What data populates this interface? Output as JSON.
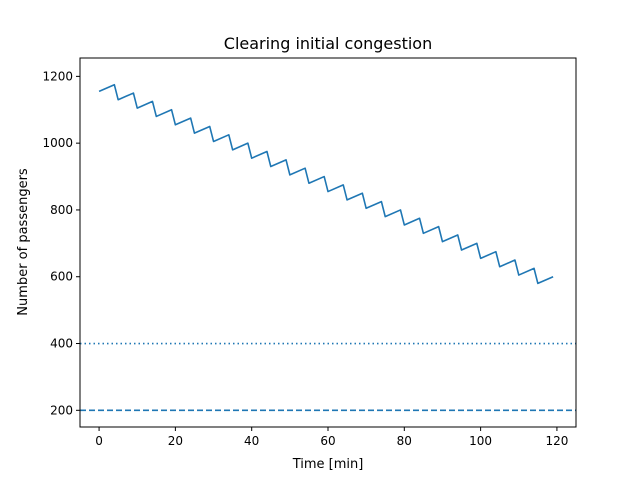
{
  "chart_data": {
    "type": "line",
    "title": "Clearing initial congestion",
    "xlabel": "Time [min]",
    "ylabel": "Number of passengers",
    "xlim": [
      -5,
      125
    ],
    "ylim": [
      150,
      1255
    ],
    "xticks": [
      0,
      20,
      40,
      60,
      80,
      100,
      120
    ],
    "yticks": [
      200,
      400,
      600,
      800,
      1000,
      1200
    ],
    "grid": false,
    "series": [
      {
        "color": "#1f77b4",
        "style": "solid",
        "x": [
          0,
          4,
          5,
          9,
          10,
          14,
          15,
          19,
          20,
          24,
          25,
          29,
          30,
          34,
          35,
          39,
          40,
          44,
          45,
          49,
          50,
          54,
          55,
          59,
          60,
          64,
          65,
          69,
          70,
          74,
          75,
          79,
          80,
          84,
          85,
          89,
          90,
          94,
          95,
          99,
          100,
          104,
          105,
          109,
          110,
          114,
          115,
          119
        ],
        "y": [
          1155,
          1175,
          1130,
          1150,
          1105,
          1125,
          1080,
          1100,
          1055,
          1075,
          1030,
          1050,
          1005,
          1025,
          980,
          1000,
          955,
          975,
          930,
          950,
          905,
          925,
          880,
          900,
          855,
          875,
          830,
          850,
          805,
          825,
          780,
          800,
          755,
          775,
          730,
          750,
          705,
          725,
          680,
          700,
          655,
          675,
          630,
          650,
          605,
          625,
          580,
          600
        ]
      }
    ],
    "reference_lines": [
      {
        "y": 400,
        "style": "dotted",
        "color": "#1f77b4"
      },
      {
        "y": 200,
        "style": "dashed",
        "color": "#1f77b4"
      }
    ]
  }
}
